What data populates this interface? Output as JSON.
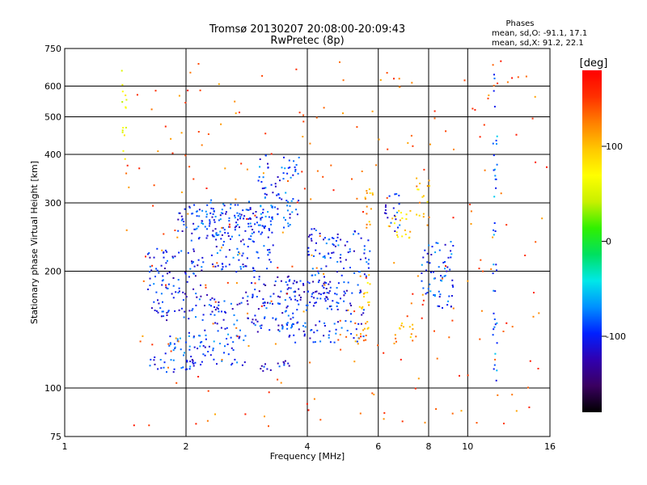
{
  "chart_data": {
    "type": "scatter",
    "title": "Tromsø 20130207 20:08:00-20:09:43",
    "subtitle": "RwPretec (8p)",
    "xlabel": "Frequency [MHz]",
    "ylabel": "Stationary phase Virtual Height [km]",
    "x_scale": "log",
    "y_scale": "log",
    "xlim": [
      1,
      16
    ],
    "ylim": [
      75,
      750
    ],
    "x_ticks": [
      "1",
      "2",
      "4",
      "6",
      "8",
      "10",
      "16"
    ],
    "y_ticks": [
      "75",
      "100",
      "200",
      "300",
      "400",
      "500",
      "600",
      "750"
    ],
    "grid": true,
    "phase_stats": {
      "heading": "Phases",
      "line_o": "mean, sd,O: -91.1, 17.1",
      "line_x": "mean, sd,X:  91.2, 22.1"
    },
    "colorbar": {
      "label": "[deg]",
      "ticks": [
        "100",
        "0",
        "-100"
      ],
      "range": [
        -180,
        180
      ],
      "colors": [
        "#000000",
        "#3a0060",
        "#3000b0",
        "#0020ff",
        "#0090ff",
        "#00e8e8",
        "#00e060",
        "#30f000",
        "#c8f000",
        "#ffff00",
        "#ffc800",
        "#ff8000",
        "#ff3000",
        "#ff0000"
      ]
    },
    "groups": [
      {
        "f": [
          1.9,
          2.15
        ],
        "h": [
          240,
          300
        ],
        "phase": -100
      },
      {
        "f": [
          2.1,
          3.0
        ],
        "h": [
          240,
          310
        ],
        "phase": -95
      },
      {
        "f": [
          2.3,
          3.3
        ],
        "h": [
          200,
          300
        ],
        "phase": -95
      },
      {
        "f": [
          3.0,
          3.8
        ],
        "h": [
          260,
          400
        ],
        "phase": -90
      },
      {
        "f": [
          1.6,
          2.2
        ],
        "h": [
          150,
          230
        ],
        "phase": -100
      },
      {
        "f": [
          1.8,
          2.8
        ],
        "h": [
          115,
          140
        ],
        "phase": -90
      },
      {
        "f": [
          2.2,
          3.8
        ],
        "h": [
          140,
          175
        ],
        "phase": -100
      },
      {
        "f": [
          2.8,
          4.5
        ],
        "h": [
          170,
          195
        ],
        "phase": -110
      },
      {
        "f": [
          3.5,
          5.5
        ],
        "h": [
          130,
          150
        ],
        "phase": -100
      },
      {
        "f": [
          3.5,
          5.5
        ],
        "h": [
          155,
          190
        ],
        "phase": -105
      },
      {
        "f": [
          4.0,
          5.7
        ],
        "h": [
          195,
          260
        ],
        "phase": -95
      },
      {
        "f": [
          3.0,
          3.6
        ],
        "h": [
          110,
          118
        ],
        "phase": -110
      },
      {
        "f": [
          1.6,
          2.1
        ],
        "h": [
          110,
          125
        ],
        "phase": -95
      },
      {
        "f": [
          5.2,
          5.7
        ],
        "h": [
          130,
          150
        ],
        "phase": 110
      },
      {
        "f": [
          5.3,
          5.7
        ],
        "h": [
          160,
          200
        ],
        "phase": 95
      },
      {
        "f": [
          5.5,
          5.8
        ],
        "h": [
          260,
          330
        ],
        "phase": 110
      },
      {
        "f": [
          6.3,
          7.2
        ],
        "h": [
          240,
          290
        ],
        "phase": 95
      },
      {
        "f": [
          7.4,
          8.0
        ],
        "h": [
          270,
          350
        ],
        "phase": 100
      },
      {
        "f": [
          6.2,
          6.8
        ],
        "h": [
          250,
          320
        ],
        "phase": -100
      },
      {
        "f": [
          6.5,
          7.3
        ],
        "h": [
          130,
          150
        ],
        "phase": 110
      },
      {
        "f": [
          7.6,
          9.2
        ],
        "h": [
          160,
          240
        ],
        "phase": -90
      },
      {
        "f": [
          1.38,
          1.42
        ],
        "h": [
          380,
          680
        ],
        "phase": 60
      },
      {
        "f": [
          11.5,
          11.8
        ],
        "h": [
          100,
          650
        ],
        "phase": -80
      },
      {
        "f": [
          1.4,
          16.0
        ],
        "h": [
          80,
          700
        ],
        "phase": 140
      }
    ]
  }
}
